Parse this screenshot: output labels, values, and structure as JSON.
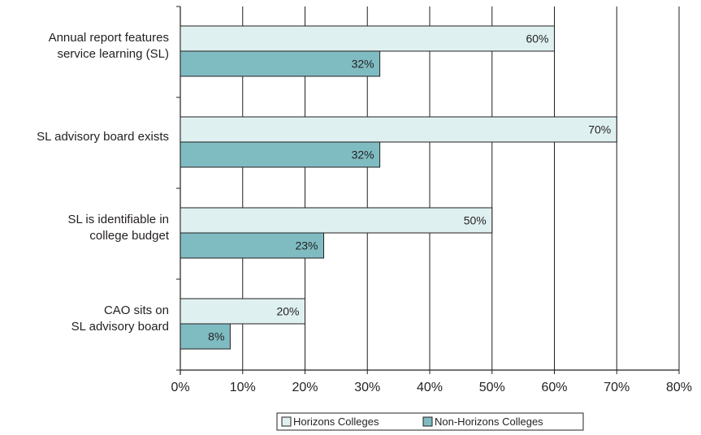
{
  "chart_data": {
    "type": "bar",
    "orientation": "horizontal",
    "categories": [
      [
        "Annual report features",
        "service learning (SL)"
      ],
      [
        "SL advisory board exists"
      ],
      [
        "SL is identifiable in",
        "college budget"
      ],
      [
        "CAO sits on",
        "SL advisory board"
      ]
    ],
    "series": [
      {
        "name": "Horizons Colleges",
        "values": [
          60,
          70,
          50,
          20
        ],
        "labels": [
          "60%",
          "70%",
          "50%",
          "20%"
        ],
        "color": "#dff0f0"
      },
      {
        "name": "Non-Horizons Colleges",
        "values": [
          32,
          32,
          23,
          8
        ],
        "labels": [
          "32%",
          "32%",
          "23%",
          "8%"
        ],
        "color": "#7fbcc2"
      }
    ],
    "xticks": [
      0,
      10,
      20,
      30,
      40,
      50,
      60,
      70,
      80
    ],
    "xtick_labels": [
      "0%",
      "10%",
      "20%",
      "30%",
      "40%",
      "50%",
      "60%",
      "70%",
      "80%"
    ],
    "xlim": [
      0,
      80
    ],
    "grid": "vertical",
    "legend_position": "bottom-right",
    "title": "",
    "xlabel": "",
    "ylabel": ""
  }
}
